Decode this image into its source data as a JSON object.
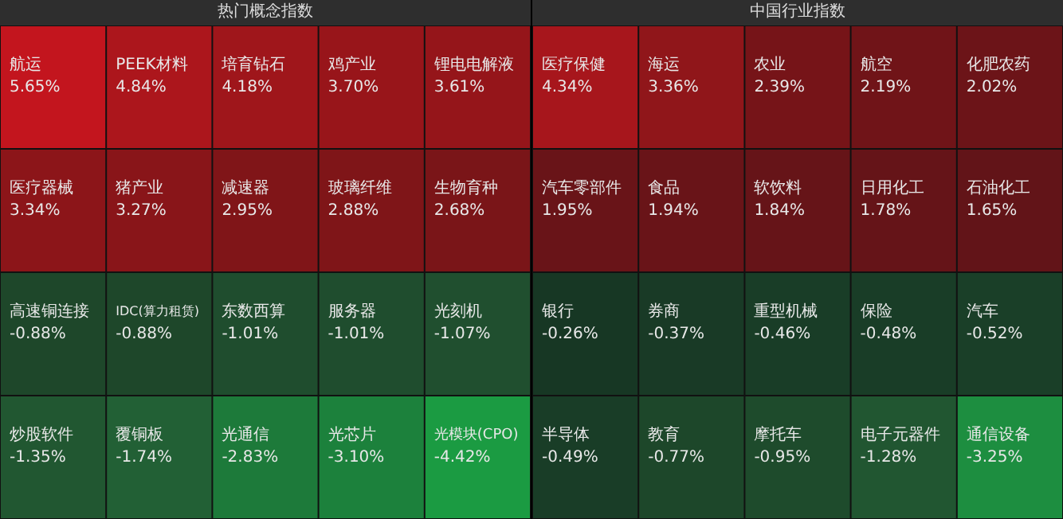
{
  "chart_data": [
    {
      "type": "other",
      "title": "热门概念指数",
      "data_labels": true,
      "categories": [
        "航运",
        "PEEK材料",
        "培育钻石",
        "鸡产业",
        "锂电电解液",
        "医疗器械",
        "猪产业",
        "减速器",
        "玻璃纤维",
        "生物育种",
        "高速铜连接",
        "IDC(算力租赁)",
        "东数西算",
        "服务器",
        "光刻机",
        "炒股软件",
        "覆铜板",
        "光通信",
        "光芯片",
        "光模块(CPO)"
      ],
      "values": [
        5.65,
        4.84,
        4.18,
        3.7,
        3.61,
        3.34,
        3.27,
        2.95,
        2.88,
        2.68,
        -0.88,
        -0.88,
        -1.01,
        -1.01,
        -1.07,
        -1.35,
        -1.74,
        -2.83,
        -3.1,
        -4.42
      ],
      "value_labels": [
        "5.65%",
        "4.84%",
        "4.18%",
        "3.70%",
        "3.61%",
        "3.34%",
        "3.27%",
        "2.95%",
        "2.88%",
        "2.68%",
        "-0.88%",
        "-0.88%",
        "-1.01%",
        "-1.01%",
        "-1.07%",
        "-1.35%",
        "-1.74%",
        "-2.83%",
        "-3.10%",
        "-4.42%"
      ],
      "colors": [
        "#b8141c",
        "#a5151b",
        "#9b151a",
        "#95151a",
        "#93151a",
        "#8a1519",
        "#881519",
        "#801518",
        "#7f1518",
        "#7a1518",
        "#1f4a2c",
        "#1f4a2c",
        "#205030",
        "#205030",
        "#215231",
        "#225a33",
        "#236236",
        "#1d7a3a",
        "#1c803c",
        "#1a9640"
      ]
    },
    {
      "type": "other",
      "title": "中国行业指数",
      "data_labels": true,
      "categories": [
        "医疗保健",
        "海运",
        "农业",
        "航空",
        "化肥农药",
        "汽车零部件",
        "食品",
        "软饮料",
        "日用化工",
        "石油化工",
        "银行",
        "券商",
        "重型机械",
        "保险",
        "汽车",
        "半导体",
        "教育",
        "摩托车",
        "电子元器件",
        "通信设备"
      ],
      "values": [
        4.34,
        3.36,
        2.39,
        2.19,
        2.02,
        1.95,
        1.94,
        1.84,
        1.78,
        1.65,
        -0.26,
        -0.37,
        -0.46,
        -0.48,
        -0.52,
        -0.49,
        -0.77,
        -0.95,
        -1.28,
        -3.25
      ],
      "value_labels": [
        "4.34%",
        "3.36%",
        "2.39%",
        "2.19%",
        "2.02%",
        "1.95%",
        "1.94%",
        "1.84%",
        "1.78%",
        "1.65%",
        "-0.26%",
        "-0.37%",
        "-0.46%",
        "-0.48%",
        "-0.52%",
        "-0.49%",
        "-0.77%",
        "-0.95%",
        "-1.28%",
        "-3.25%"
      ],
      "colors": [
        "#9e151a",
        "#8b1519",
        "#751418",
        "#701418",
        "#6c1418",
        "#6a1418",
        "#6a1418",
        "#671418",
        "#661418",
        "#631418",
        "#183a26",
        "#1a3d28",
        "#1a4029",
        "#1a4029",
        "#1b422a",
        "#1a4029",
        "#1e4a2c",
        "#1f4e2e",
        "#225832",
        "#1c8a3e"
      ]
    }
  ]
}
